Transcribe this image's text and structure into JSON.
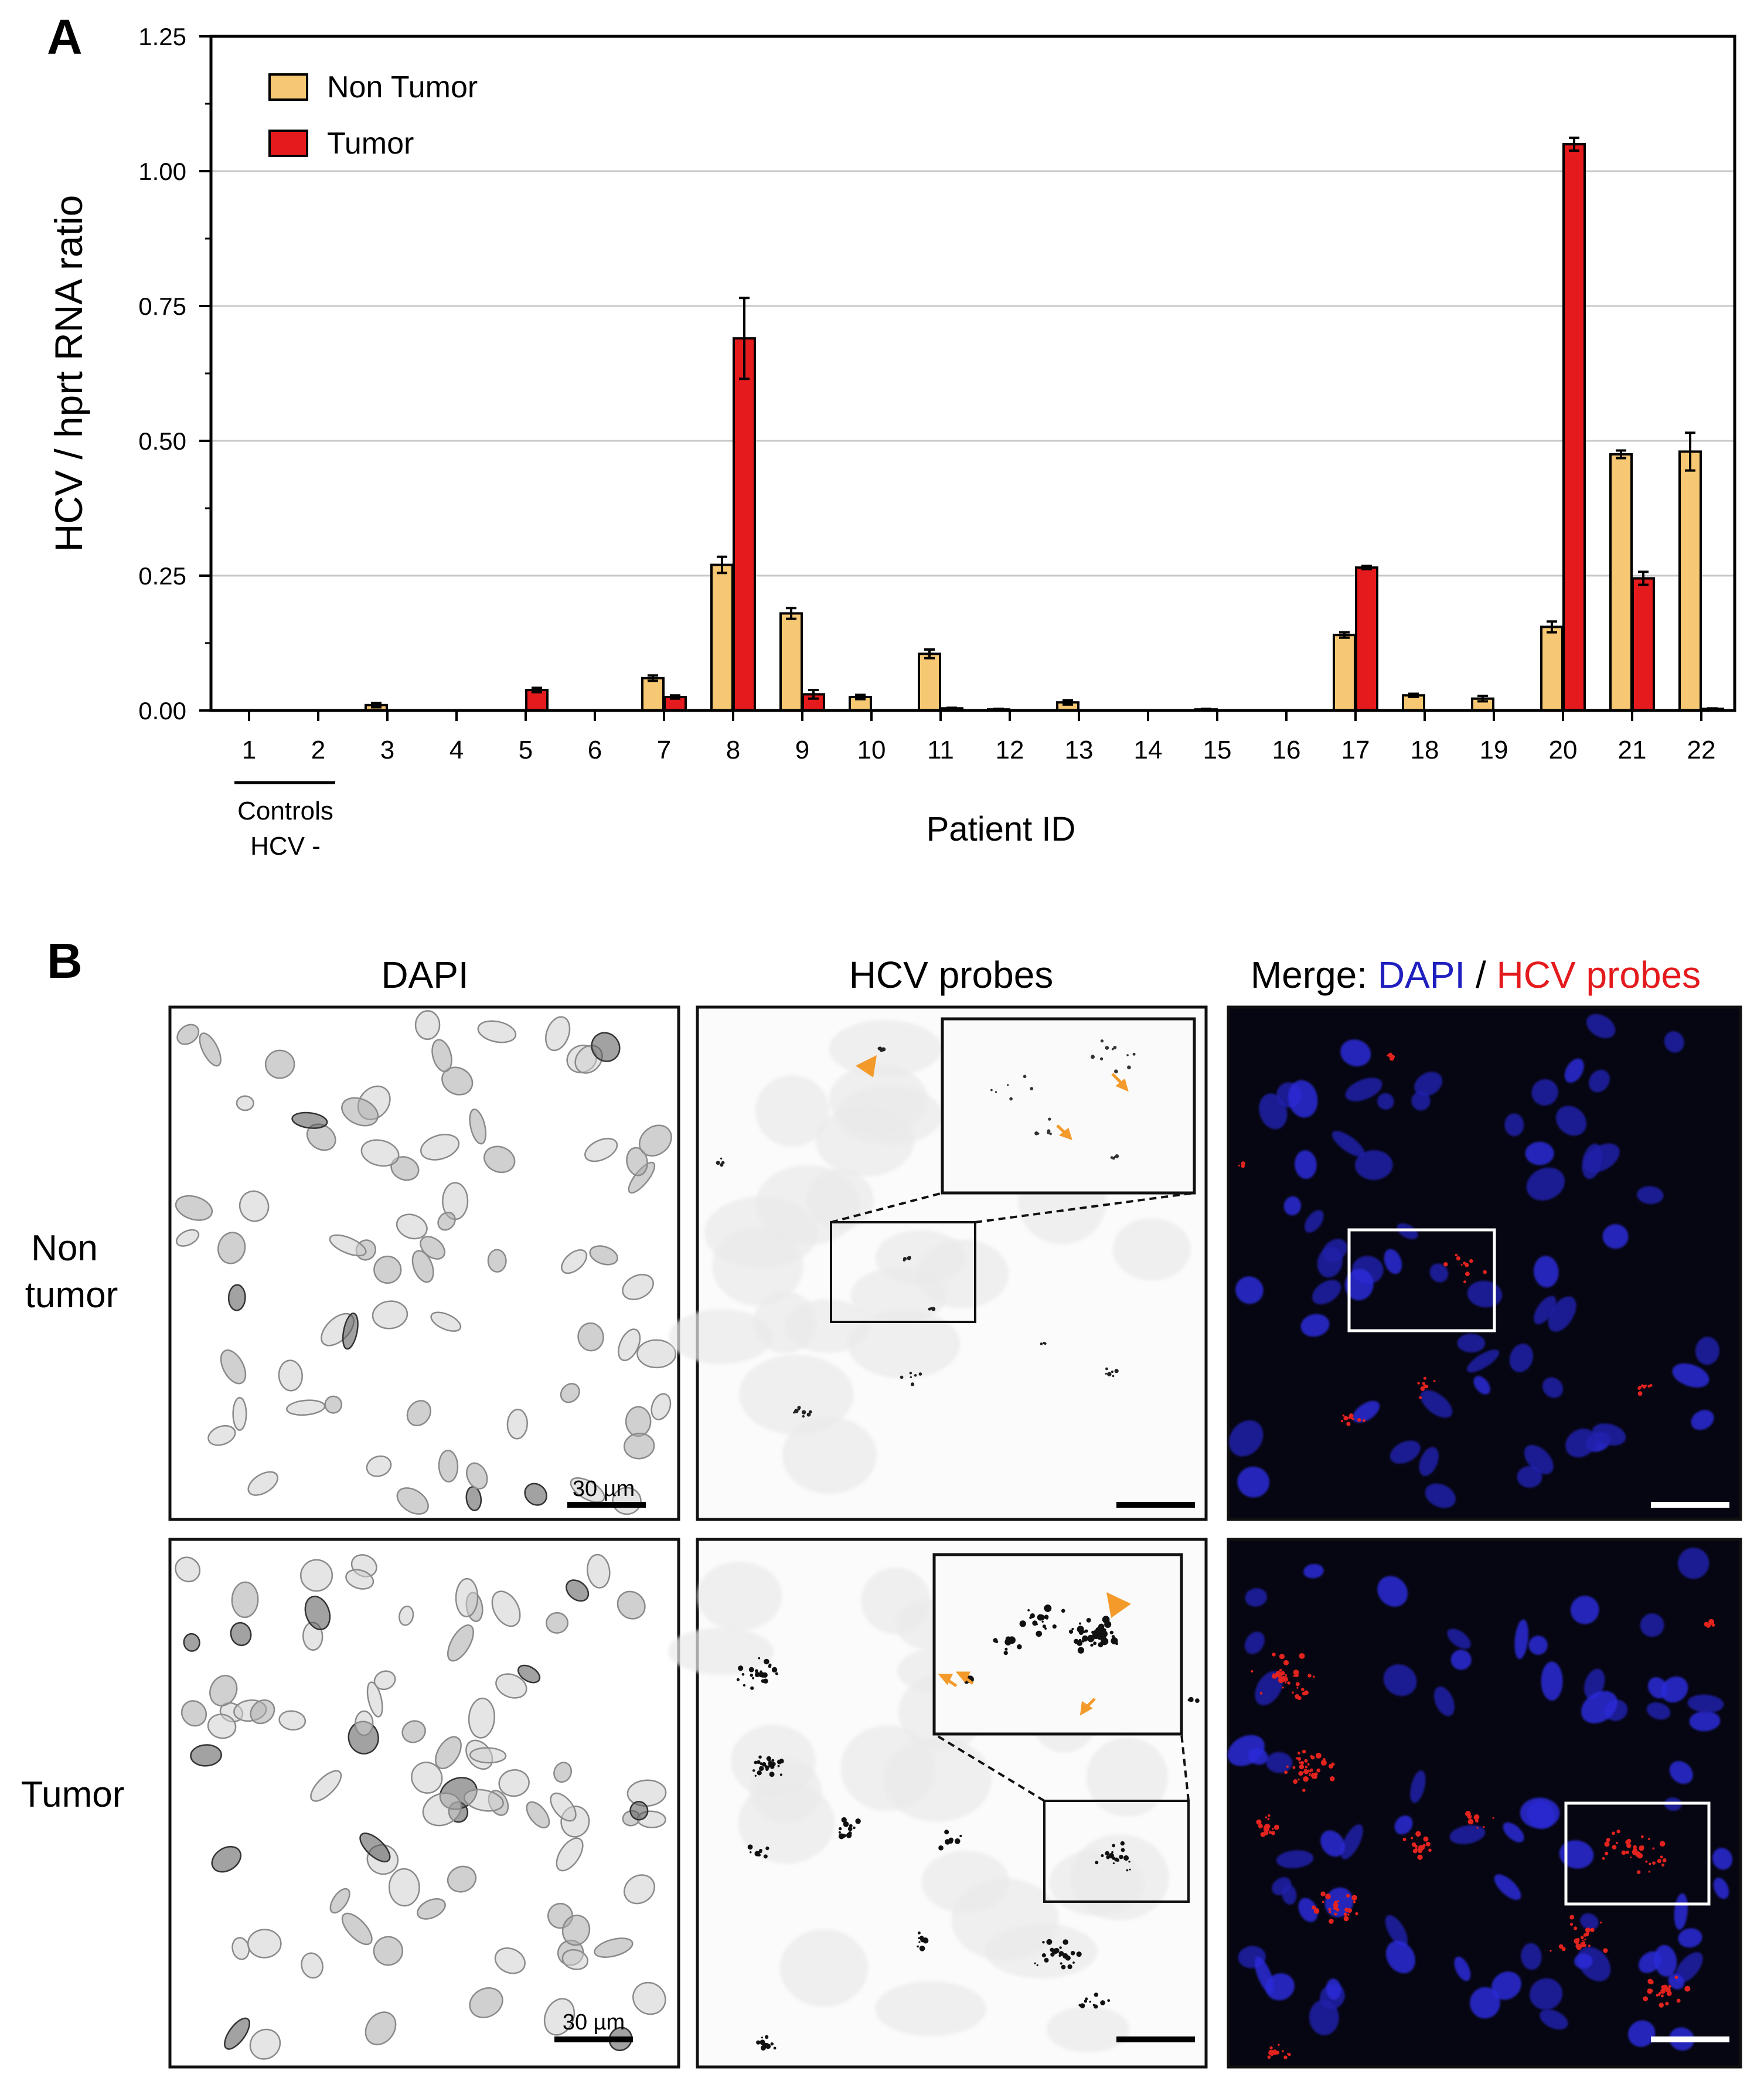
{
  "panel_a": {
    "letter": "A",
    "chart_data": {
      "type": "bar",
      "ylabel": "HCV / hprt RNA ratio",
      "xlabel": "Patient ID",
      "ylim": [
        0,
        1.25
      ],
      "yticks": [
        "0.00",
        "0.25",
        "0.50",
        "0.75",
        "1.00",
        "1.25"
      ],
      "ytick_values": [
        0,
        0.25,
        0.5,
        0.75,
        1.0,
        1.25
      ],
      "grid": "horizontal",
      "legend_position": "top-left",
      "categories": [
        "1",
        "2",
        "3",
        "4",
        "5",
        "6",
        "7",
        "8",
        "9",
        "10",
        "11",
        "12",
        "13",
        "14",
        "15",
        "16",
        "17",
        "18",
        "19",
        "20",
        "21",
        "22"
      ],
      "series": [
        {
          "name": "Non Tumor",
          "color": "#F7C873",
          "values": [
            0,
            0,
            0.01,
            0,
            0,
            0,
            0.06,
            0.27,
            0.18,
            0.025,
            0.105,
            0.002,
            0.015,
            0,
            0.002,
            0,
            0.14,
            0.028,
            0.022,
            0.155,
            0.475,
            0.48
          ],
          "errors": [
            0,
            0,
            0.004,
            0,
            0,
            0,
            0.005,
            0.015,
            0.01,
            0.004,
            0.008,
            0.001,
            0.004,
            0,
            0.001,
            0,
            0.005,
            0.003,
            0.005,
            0.01,
            0.007,
            0.035
          ]
        },
        {
          "name": "Tumor",
          "color": "#E41A1C",
          "values": [
            0,
            0,
            0,
            0,
            0.038,
            0,
            0.025,
            0.69,
            0.03,
            0,
            0.004,
            0,
            0,
            0,
            0,
            0,
            0.265,
            0,
            0,
            1.05,
            0.245,
            0.003
          ],
          "errors": [
            0,
            0,
            0,
            0,
            0.004,
            0,
            0.003,
            0.075,
            0.008,
            0,
            0.001,
            0,
            0,
            0,
            0,
            0,
            0.003,
            0,
            0,
            0.012,
            0.012,
            0.001
          ]
        }
      ],
      "annotation": {
        "line1": "Controls",
        "line2": "HCV -",
        "spans": [
          "1",
          "2"
        ]
      }
    }
  },
  "panel_b": {
    "letter": "B",
    "col_dapi": "DAPI",
    "col_hcv": "HCV probes",
    "merge_prefix": "Merge: ",
    "merge_dapi": "DAPI",
    "merge_sep": " / ",
    "merge_hcv": "HCV probes",
    "row_nontumor_line1": "Non",
    "row_nontumor_line2": "tumor",
    "row_tumor": "Tumor",
    "scale_label": "30 µm",
    "colors": {
      "dapi": "#1F1FBF",
      "hcv": "#E41A1C",
      "arrow": "#F39A2B"
    }
  }
}
